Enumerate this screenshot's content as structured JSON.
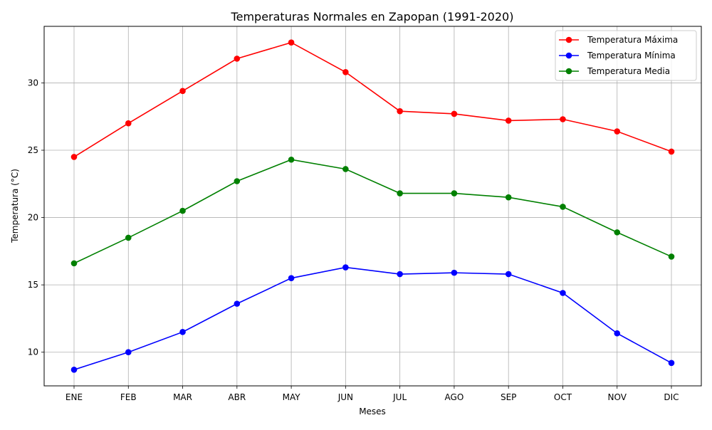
{
  "chart_data": {
    "type": "line",
    "title": "Temperaturas Normales en Zapopan (1991-2020)",
    "xlabel": "Meses",
    "ylabel": "Temperatura (°C)",
    "categories": [
      "ENE",
      "FEB",
      "MAR",
      "ABR",
      "MAY",
      "JUN",
      "JUL",
      "AGO",
      "SEP",
      "OCT",
      "NOV",
      "DIC"
    ],
    "ylim": [
      7.5,
      34.2
    ],
    "yticks": [
      10,
      15,
      20,
      25,
      30
    ],
    "grid": true,
    "legend_position": "top-right",
    "series": [
      {
        "name": "Temperatura Máxima",
        "color": "#ff0000",
        "marker": "circle",
        "values": [
          24.5,
          27.0,
          29.4,
          31.8,
          33.0,
          30.8,
          27.9,
          27.7,
          27.2,
          27.3,
          26.4,
          24.9
        ]
      },
      {
        "name": "Temperatura Mínima",
        "color": "#0000ff",
        "marker": "circle",
        "values": [
          8.7,
          10.0,
          11.5,
          13.6,
          15.5,
          16.3,
          15.8,
          15.9,
          15.8,
          14.4,
          11.4,
          9.2
        ]
      },
      {
        "name": "Temperatura Media",
        "color": "#008000",
        "marker": "circle",
        "values": [
          16.6,
          18.5,
          20.5,
          22.7,
          24.3,
          23.6,
          21.8,
          21.8,
          21.5,
          20.8,
          18.9,
          17.1
        ]
      }
    ]
  }
}
